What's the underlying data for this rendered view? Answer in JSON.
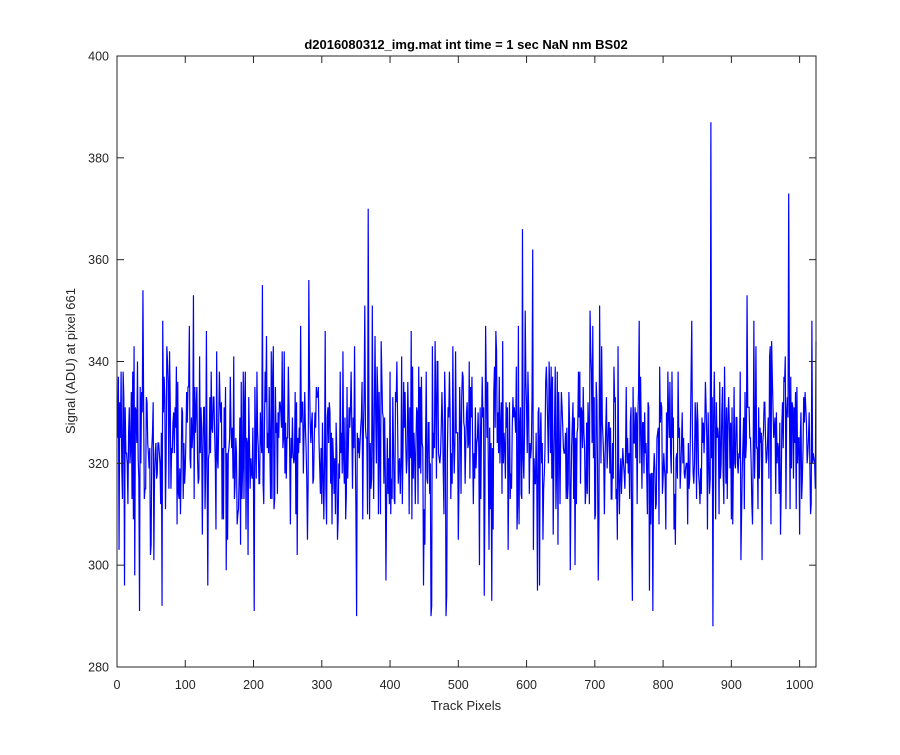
{
  "chart_data": {
    "type": "line",
    "title": "d2016080312_img.mat int time = 1 sec  NaN nm BS02",
    "xlabel": "Track Pixels",
    "ylabel": "Signal (ADU) at pixel 661",
    "xlim": [
      0,
      1024
    ],
    "ylim": [
      280,
      400
    ],
    "x_ticks": [
      0,
      100,
      200,
      300,
      400,
      500,
      600,
      700,
      800,
      900,
      1000
    ],
    "y_ticks": [
      280,
      300,
      320,
      340,
      360,
      380,
      400
    ],
    "grid": false,
    "legend": "none",
    "colors": {
      "line": "#0000ff",
      "axes": "#262626"
    },
    "series": [
      {
        "x_start": 1,
        "x_step": 1,
        "n_points": 1024,
        "mean": 324,
        "std_dev": 10,
        "min": 288,
        "max": 387,
        "peaks": [
          {
            "x": 3,
            "y": 303
          },
          {
            "x": 11,
            "y": 296
          },
          {
            "x": 33,
            "y": 291
          },
          {
            "x": 38,
            "y": 354
          },
          {
            "x": 54,
            "y": 301
          },
          {
            "x": 112,
            "y": 353
          },
          {
            "x": 160,
            "y": 299
          },
          {
            "x": 201,
            "y": 291
          },
          {
            "x": 213,
            "y": 355
          },
          {
            "x": 281,
            "y": 356
          },
          {
            "x": 351,
            "y": 290
          },
          {
            "x": 368,
            "y": 370
          },
          {
            "x": 460,
            "y": 290
          },
          {
            "x": 482,
            "y": 290
          },
          {
            "x": 549,
            "y": 293
          },
          {
            "x": 594,
            "y": 366
          },
          {
            "x": 609,
            "y": 362
          },
          {
            "x": 616,
            "y": 295
          },
          {
            "x": 705,
            "y": 297
          },
          {
            "x": 755,
            "y": 293
          },
          {
            "x": 785,
            "y": 291
          },
          {
            "x": 870,
            "y": 387
          },
          {
            "x": 873,
            "y": 288
          },
          {
            "x": 984,
            "y": 373
          },
          {
            "x": 1018,
            "y": 348
          }
        ]
      }
    ]
  }
}
